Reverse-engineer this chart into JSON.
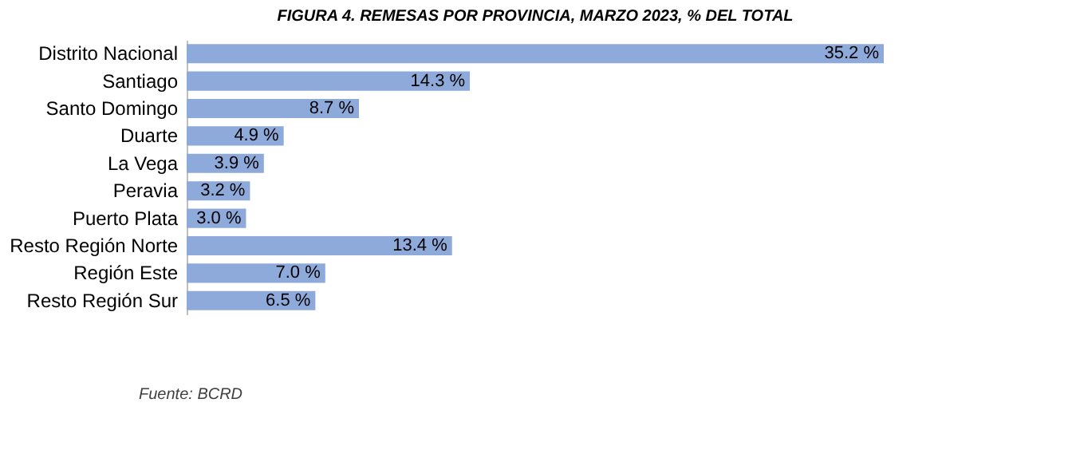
{
  "chart_data": {
    "type": "bar",
    "orientation": "horizontal",
    "title": "FIGURA 4. REMESAS POR PROVINCIA, MARZO 2023, % DEL TOTAL",
    "categories": [
      "Distrito Nacional",
      "Santiago",
      "Santo Domingo",
      "Duarte",
      "La Vega",
      "Peravia",
      "Puerto Plata",
      "Resto Región Norte",
      "Región Este",
      "Resto Región Sur"
    ],
    "values": [
      35.2,
      14.3,
      8.7,
      4.9,
      3.9,
      3.2,
      3.0,
      13.4,
      7.0,
      6.5
    ],
    "value_labels": [
      "35.2 %",
      "14.3 %",
      "8.7 %",
      "4.9 %",
      "3.9 %",
      "3.2 %",
      "3.0 %",
      "13.4 %",
      "7.0 %",
      "6.5 %"
    ],
    "color": "#8eaadb",
    "annotations": [
      "Fuente: BCRD"
    ],
    "grid": false
  }
}
